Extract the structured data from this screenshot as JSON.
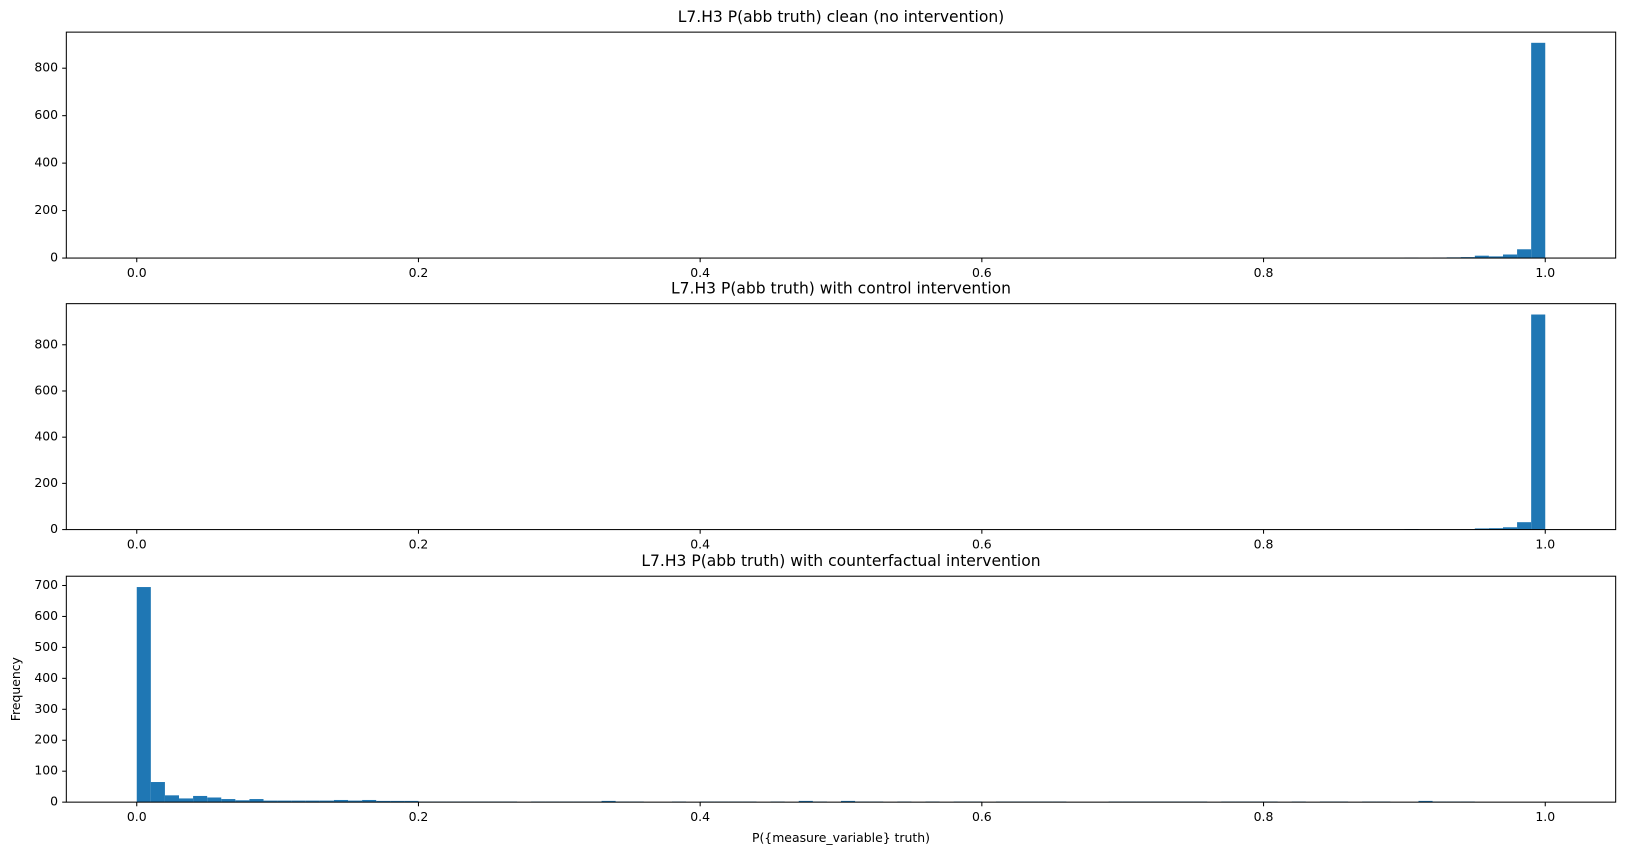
{
  "chart_data": [
    {
      "type": "histogram",
      "title": "L7.H3 P(abb truth) clean (no intervention)",
      "color": "#1f77b4",
      "bins": [
        0,
        0.01,
        0.02,
        0.03,
        0.04,
        0.05,
        0.06,
        0.07,
        0.08,
        0.09,
        0.1,
        0.11,
        0.12,
        0.13,
        0.14,
        0.15,
        0.16,
        0.17,
        0.18,
        0.19,
        0.2,
        0.21,
        0.22,
        0.23,
        0.24,
        0.25,
        0.26,
        0.27,
        0.28,
        0.29,
        0.3,
        0.31,
        0.32,
        0.33,
        0.34,
        0.35,
        0.36,
        0.37,
        0.38,
        0.39,
        0.4,
        0.41,
        0.42,
        0.43,
        0.44,
        0.45,
        0.46,
        0.47,
        0.48,
        0.49,
        0.5,
        0.51,
        0.52,
        0.53,
        0.54,
        0.55,
        0.56,
        0.57,
        0.58,
        0.59,
        0.6,
        0.61,
        0.62,
        0.63,
        0.64,
        0.65,
        0.66,
        0.67,
        0.68,
        0.69,
        0.7,
        0.71,
        0.72,
        0.73,
        0.74,
        0.75,
        0.76,
        0.77,
        0.78,
        0.79,
        0.8,
        0.81,
        0.82,
        0.83,
        0.84,
        0.85,
        0.86,
        0.87,
        0.88,
        0.89,
        0.9,
        0.91,
        0.92,
        0.93,
        0.94,
        0.95,
        0.96,
        0.97,
        0.98,
        0.99,
        1
      ],
      "values": [
        0,
        0,
        0,
        0,
        0,
        0,
        0,
        0,
        0,
        0,
        0,
        0,
        0,
        0,
        0,
        0,
        0,
        0,
        0,
        0,
        0,
        0,
        0,
        0,
        0,
        0,
        0,
        0,
        0,
        0,
        0,
        0,
        0,
        0,
        0,
        0,
        0,
        0,
        0,
        0,
        0,
        0,
        0,
        0,
        0,
        0,
        0,
        0,
        0,
        0,
        0,
        0,
        0,
        0,
        0,
        0,
        0,
        0,
        0,
        0,
        0,
        0,
        0,
        0,
        0,
        0,
        0,
        0,
        0,
        0,
        0,
        0,
        0,
        0,
        0,
        0,
        0,
        0,
        0,
        0,
        0,
        0,
        0,
        0,
        0,
        0,
        0,
        0,
        0,
        0,
        2,
        0,
        2,
        3,
        4,
        10,
        7,
        15,
        37,
        907
      ],
      "xlim": [
        -0.05,
        1.05
      ],
      "xticks": [
        {
          "value": 0,
          "label": "0.0"
        },
        0.2,
        0.4,
        0.6,
        0.8,
        {
          "value": 1,
          "label": "1.0"
        }
      ],
      "ylim": [
        0,
        952
      ],
      "yticks": [
        0,
        200,
        400,
        600,
        800
      ]
    },
    {
      "type": "histogram",
      "title": "L7.H3 P(abb truth) with control intervention",
      "color": "#1f77b4",
      "bins": [
        0,
        0.01,
        0.02,
        0.03,
        0.04,
        0.05,
        0.06,
        0.07,
        0.08,
        0.09,
        0.1,
        0.11,
        0.12,
        0.13,
        0.14,
        0.15,
        0.16,
        0.17,
        0.18,
        0.19,
        0.2,
        0.21,
        0.22,
        0.23,
        0.24,
        0.25,
        0.26,
        0.27,
        0.28,
        0.29,
        0.3,
        0.31,
        0.32,
        0.33,
        0.34,
        0.35,
        0.36,
        0.37,
        0.38,
        0.39,
        0.4,
        0.41,
        0.42,
        0.43,
        0.44,
        0.45,
        0.46,
        0.47,
        0.48,
        0.49,
        0.5,
        0.51,
        0.52,
        0.53,
        0.54,
        0.55,
        0.56,
        0.57,
        0.58,
        0.59,
        0.6,
        0.61,
        0.62,
        0.63,
        0.64,
        0.65,
        0.66,
        0.67,
        0.68,
        0.69,
        0.7,
        0.71,
        0.72,
        0.73,
        0.74,
        0.75,
        0.76,
        0.77,
        0.78,
        0.79,
        0.8,
        0.81,
        0.82,
        0.83,
        0.84,
        0.85,
        0.86,
        0.87,
        0.88,
        0.89,
        0.9,
        0.91,
        0.92,
        0.93,
        0.94,
        0.95,
        0.96,
        0.97,
        0.98,
        0.99,
        1
      ],
      "values": [
        0,
        0,
        0,
        0,
        0,
        0,
        0,
        0,
        0,
        0,
        0,
        0,
        0,
        0,
        0,
        0,
        0,
        0,
        0,
        0,
        0,
        0,
        0,
        0,
        0,
        0,
        0,
        0,
        0,
        0,
        0,
        0,
        0,
        0,
        0,
        0,
        0,
        0,
        0,
        0,
        0,
        0,
        0,
        0,
        0,
        0,
        0,
        0,
        0,
        0,
        0,
        0,
        0,
        0,
        0,
        0,
        0,
        0,
        0,
        0,
        0,
        0,
        0,
        0,
        0,
        0,
        0,
        0,
        0,
        0,
        0,
        0,
        0,
        0,
        0,
        0,
        0,
        0,
        0,
        0,
        0,
        0,
        0,
        0,
        0,
        0,
        0,
        0,
        0,
        0,
        2,
        0,
        0,
        0,
        1,
        5,
        6,
        10,
        32,
        931
      ],
      "xlim": [
        -0.05,
        1.05
      ],
      "xticks": [
        {
          "value": 0,
          "label": "0.0"
        },
        0.2,
        0.4,
        0.6,
        0.8,
        {
          "value": 1,
          "label": "1.0"
        }
      ],
      "ylim": [
        0,
        978
      ],
      "yticks": [
        0,
        200,
        400,
        600,
        800
      ]
    },
    {
      "type": "histogram",
      "title": "L7.H3 P(abb truth) with counterfactual intervention",
      "color": "#1f77b4",
      "x_label": "P({measure_variable} truth)",
      "y_label": "Frequency",
      "bins": [
        0,
        0.01,
        0.02,
        0.03,
        0.04,
        0.05,
        0.06,
        0.07,
        0.08,
        0.09,
        0.1,
        0.11,
        0.12,
        0.13,
        0.14,
        0.15,
        0.16,
        0.17,
        0.18,
        0.19,
        0.2,
        0.21,
        0.22,
        0.23,
        0.24,
        0.25,
        0.26,
        0.27,
        0.28,
        0.29,
        0.3,
        0.31,
        0.32,
        0.33,
        0.34,
        0.35,
        0.36,
        0.37,
        0.38,
        0.39,
        0.4,
        0.41,
        0.42,
        0.43,
        0.44,
        0.45,
        0.46,
        0.47,
        0.48,
        0.49,
        0.5,
        0.51,
        0.52,
        0.53,
        0.54,
        0.55,
        0.56,
        0.57,
        0.58,
        0.59,
        0.6,
        0.61,
        0.62,
        0.63,
        0.64,
        0.65,
        0.66,
        0.67,
        0.68,
        0.69,
        0.7,
        0.71,
        0.72,
        0.73,
        0.74,
        0.75,
        0.76,
        0.77,
        0.78,
        0.79,
        0.8,
        0.81,
        0.82,
        0.83,
        0.84,
        0.85,
        0.86,
        0.87,
        0.88,
        0.89,
        0.9,
        0.91,
        0.92,
        0.93,
        0.94,
        0.95,
        0.96,
        0.97,
        0.98,
        0.99,
        1
      ],
      "values": [
        695,
        65,
        22,
        12,
        20,
        15,
        10,
        6,
        10,
        5,
        5,
        5,
        5,
        5,
        7,
        5,
        7,
        4,
        4,
        4,
        2,
        2,
        2,
        2,
        2,
        2,
        2,
        0,
        2,
        2,
        2,
        2,
        2,
        4,
        2,
        2,
        0,
        0,
        2,
        0,
        2,
        2,
        2,
        2,
        0,
        2,
        0,
        4,
        2,
        0,
        4,
        2,
        2,
        0,
        2,
        0,
        2,
        0,
        2,
        2,
        0,
        2,
        2,
        2,
        2,
        2,
        0,
        0,
        0,
        2,
        2,
        2,
        2,
        2,
        2,
        2,
        0,
        2,
        2,
        2,
        2,
        0,
        2,
        0,
        2,
        2,
        0,
        2,
        2,
        0,
        0,
        4,
        2,
        2,
        2,
        0,
        0,
        0,
        0,
        0
      ],
      "xlim": [
        -0.05,
        1.05
      ],
      "xticks": [
        {
          "value": 0,
          "label": "0.0"
        },
        0.2,
        0.4,
        0.6,
        0.8,
        {
          "value": 1,
          "label": "1.0"
        }
      ],
      "ylim": [
        0,
        730
      ],
      "yticks": [
        0,
        100,
        200,
        300,
        400,
        500,
        600,
        700
      ]
    }
  ]
}
